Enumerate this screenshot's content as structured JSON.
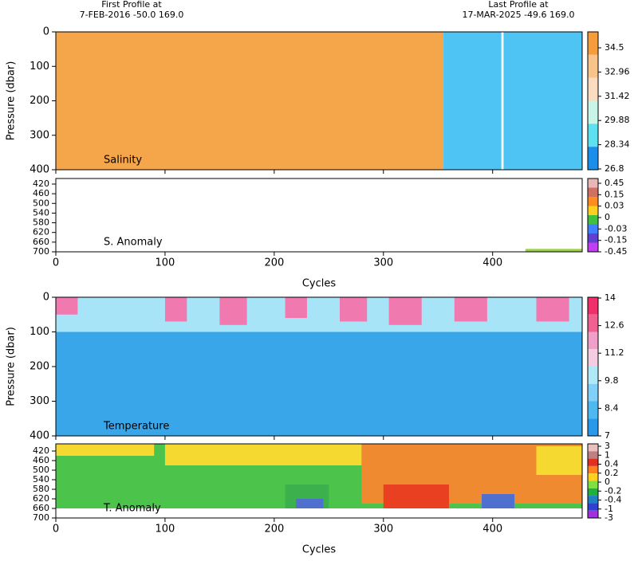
{
  "header": {
    "first_title": "First Profile at",
    "first_info": "7-FEB-2016   -50.0  169.0",
    "last_title": "Last Profile at",
    "last_info": "17-MAR-2025   -49.6  169.0"
  },
  "chart_data": [
    {
      "type": "contour",
      "title": "Salinity",
      "ylabel": "Pressure (dbar)",
      "xlim": [
        0,
        482
      ],
      "xticks": [
        0,
        100,
        200,
        300,
        400
      ],
      "ylim": [
        0,
        400
      ],
      "yticks": [
        0,
        100,
        200,
        300,
        400
      ],
      "fills": [
        {
          "x": [
            0,
            355
          ],
          "y": [
            0,
            400
          ],
          "color": "#f5a54a"
        },
        {
          "x": [
            355,
            482
          ],
          "y": [
            0,
            400
          ],
          "color": "#4ec4f5"
        },
        {
          "x": [
            408,
            410
          ],
          "y": [
            0,
            400
          ],
          "color": "#ffffff"
        }
      ],
      "colorbar": {
        "ticks": [
          34.5,
          32.96,
          31.42,
          29.88,
          28.34,
          26.8
        ],
        "colors": [
          "#f59d3d",
          "#f8c48c",
          "#fbdcc0",
          "#c8f5e8",
          "#5fe0f0",
          "#1a8ee8"
        ]
      }
    },
    {
      "type": "contour",
      "title": "S. Anomaly",
      "xlabel": "Cycles",
      "xlim": [
        0,
        482
      ],
      "xticks": [
        0,
        100,
        200,
        300,
        400
      ],
      "ylim": [
        397,
        700
      ],
      "yticks": [
        420,
        460,
        500,
        540,
        580,
        620,
        660,
        700
      ],
      "fills": [
        {
          "x": [
            430,
            482
          ],
          "y": [
            688,
            700
          ],
          "color": "#9bd04a"
        }
      ],
      "colorbar": {
        "ticks": [
          0.45,
          0.15,
          0.03,
          0,
          -0.03,
          -0.15,
          -0.45
        ],
        "colors": [
          "#e8b8b8",
          "#d07060",
          "#ff8c20",
          "#ffd020",
          "#40c040",
          "#4080ff",
          "#6040d0",
          "#c040f0"
        ]
      }
    },
    {
      "type": "contour",
      "title": "Temperature",
      "ylabel": "Pressure (dbar)",
      "xlim": [
        0,
        482
      ],
      "xticks": [
        0,
        100,
        200,
        300,
        400
      ],
      "ylim": [
        0,
        400
      ],
      "yticks": [
        0,
        100,
        200,
        300,
        400
      ],
      "fills": [
        {
          "x": [
            0,
            482
          ],
          "y": [
            0,
            400
          ],
          "color": "#3aa6ea"
        },
        {
          "x": [
            0,
            482
          ],
          "y": [
            0,
            100
          ],
          "color": "#a8e4f8"
        },
        {
          "x": [
            0,
            20
          ],
          "y": [
            0,
            50
          ],
          "color": "#f07ab0"
        },
        {
          "x": [
            100,
            120
          ],
          "y": [
            0,
            70
          ],
          "color": "#f07ab0"
        },
        {
          "x": [
            150,
            175
          ],
          "y": [
            0,
            80
          ],
          "color": "#f07ab0"
        },
        {
          "x": [
            210,
            230
          ],
          "y": [
            0,
            60
          ],
          "color": "#f07ab0"
        },
        {
          "x": [
            260,
            285
          ],
          "y": [
            0,
            70
          ],
          "color": "#f07ab0"
        },
        {
          "x": [
            305,
            335
          ],
          "y": [
            0,
            80
          ],
          "color": "#f07ab0"
        },
        {
          "x": [
            365,
            395
          ],
          "y": [
            0,
            70
          ],
          "color": "#f07ab0"
        },
        {
          "x": [
            440,
            470
          ],
          "y": [
            0,
            70
          ],
          "color": "#f07ab0"
        }
      ],
      "colorbar": {
        "ticks": [
          14,
          12.6,
          11.2,
          9.8,
          8.4,
          7
        ],
        "colors": [
          "#f0306a",
          "#f06090",
          "#f0a0c8",
          "#f5cde0",
          "#b0e8f8",
          "#80d0f8",
          "#50b8f0",
          "#2898e8"
        ]
      }
    },
    {
      "type": "contour",
      "title": "T. Anomaly",
      "xlabel": "Cycles",
      "xlim": [
        0,
        482
      ],
      "xticks": [
        0,
        100,
        200,
        300,
        400
      ],
      "ylim": [
        390,
        700
      ],
      "yticks": [
        420,
        460,
        500,
        540,
        580,
        620,
        660,
        700
      ],
      "fills": [
        {
          "x": [
            0,
            482
          ],
          "y": [
            390,
            660
          ],
          "color": "#4cc44c"
        },
        {
          "x": [
            0,
            90
          ],
          "y": [
            390,
            440
          ],
          "color": "#f5d830"
        },
        {
          "x": [
            100,
            280
          ],
          "y": [
            390,
            480
          ],
          "color": "#f5d830"
        },
        {
          "x": [
            280,
            482
          ],
          "y": [
            390,
            640
          ],
          "color": "#f08a30"
        },
        {
          "x": [
            300,
            360
          ],
          "y": [
            560,
            660
          ],
          "color": "#e84020"
        },
        {
          "x": [
            210,
            250
          ],
          "y": [
            560,
            660
          ],
          "color": "#3cb04c"
        },
        {
          "x": [
            220,
            245
          ],
          "y": [
            620,
            660
          ],
          "color": "#5070d0"
        },
        {
          "x": [
            390,
            420
          ],
          "y": [
            600,
            660
          ],
          "color": "#5070d0"
        },
        {
          "x": [
            440,
            482
          ],
          "y": [
            400,
            520
          ],
          "color": "#f5d830"
        }
      ],
      "colorbar": {
        "ticks": [
          3,
          1,
          0.4,
          0.2,
          0,
          -0.2,
          -0.4,
          -1,
          -3
        ],
        "colors": [
          "#e8c0c0",
          "#c08080",
          "#e03020",
          "#ff8020",
          "#ffd020",
          "#80e040",
          "#20b040",
          "#2080c0",
          "#3040d0",
          "#a030e0"
        ]
      }
    }
  ]
}
